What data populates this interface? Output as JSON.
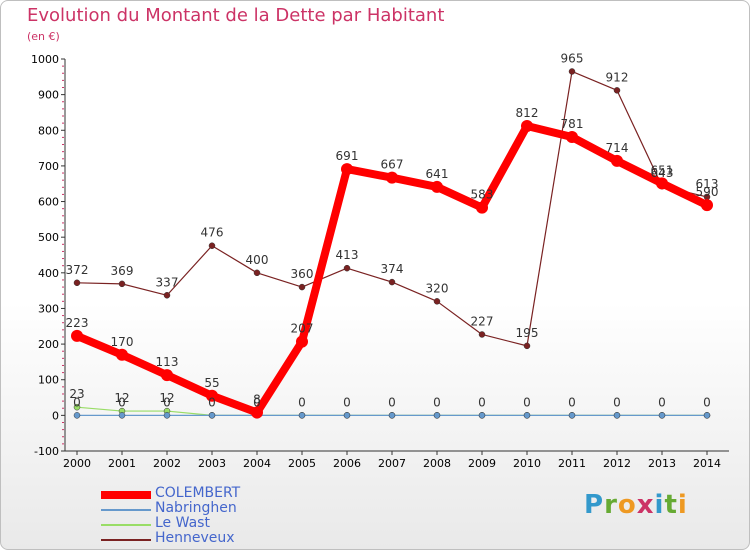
{
  "header": {
    "title": "Evolution du Montant de la Dette par Habitant",
    "subtitle": "(en €)"
  },
  "logo": {
    "letters": [
      "P",
      "r",
      "o",
      "x",
      "i",
      "t",
      "i"
    ]
  },
  "chart_data": {
    "type": "line",
    "title": "Evolution du Montant de la Dette par Habitant",
    "subtitle": "(en €)",
    "xlabel": "",
    "ylabel": "",
    "x": [
      "2000",
      "2001",
      "2002",
      "2003",
      "2004",
      "2005",
      "2006",
      "2007",
      "2008",
      "2009",
      "2010",
      "2011",
      "2012",
      "2013",
      "2014"
    ],
    "ylim": [
      -100,
      1000
    ],
    "yticks": [
      -100,
      0,
      100,
      200,
      300,
      400,
      500,
      600,
      700,
      800,
      900,
      1000
    ],
    "grid": false,
    "legend_position": "bottom-left",
    "series": [
      {
        "name": "COLEMBERT",
        "color": "#ff0000",
        "values": [
          223,
          170,
          113,
          55,
          8,
          207,
          691,
          667,
          641,
          583,
          812,
          781,
          714,
          651,
          590
        ],
        "labels": [
          "223",
          "170",
          "113",
          "55",
          "8",
          "207",
          "691",
          "667",
          "641",
          "583",
          "812",
          "781",
          "714",
          "651",
          "590"
        ]
      },
      {
        "name": "Nabringhen",
        "color": "#6699cc",
        "values": [
          0,
          0,
          0,
          0,
          0,
          0,
          0,
          0,
          0,
          0,
          0,
          0,
          0,
          0,
          0
        ],
        "labels": [
          "0",
          "0",
          "0",
          "0",
          "0",
          "0",
          "0",
          "0",
          "0",
          "0",
          "0",
          "0",
          "0",
          "0",
          "0"
        ]
      },
      {
        "name": "Le Wast",
        "color": "#99dd66",
        "values": [
          23,
          12,
          12,
          0,
          0,
          0,
          0,
          0,
          0,
          0,
          0,
          0,
          0,
          0,
          0
        ],
        "labels": [
          "23",
          "12",
          "12",
          "",
          "",
          "",
          "",
          "",
          "",
          "",
          "",
          "",
          "",
          "",
          ""
        ]
      },
      {
        "name": "Henneveux",
        "color": "#7a2222",
        "values": [
          372,
          369,
          337,
          476,
          400,
          360,
          413,
          374,
          320,
          227,
          195,
          965,
          912,
          643,
          613
        ],
        "labels": [
          "372",
          "369",
          "337",
          "476",
          "400",
          "360",
          "413",
          "374",
          "320",
          "227",
          "195",
          "965",
          "912",
          "643",
          "613"
        ]
      }
    ]
  }
}
